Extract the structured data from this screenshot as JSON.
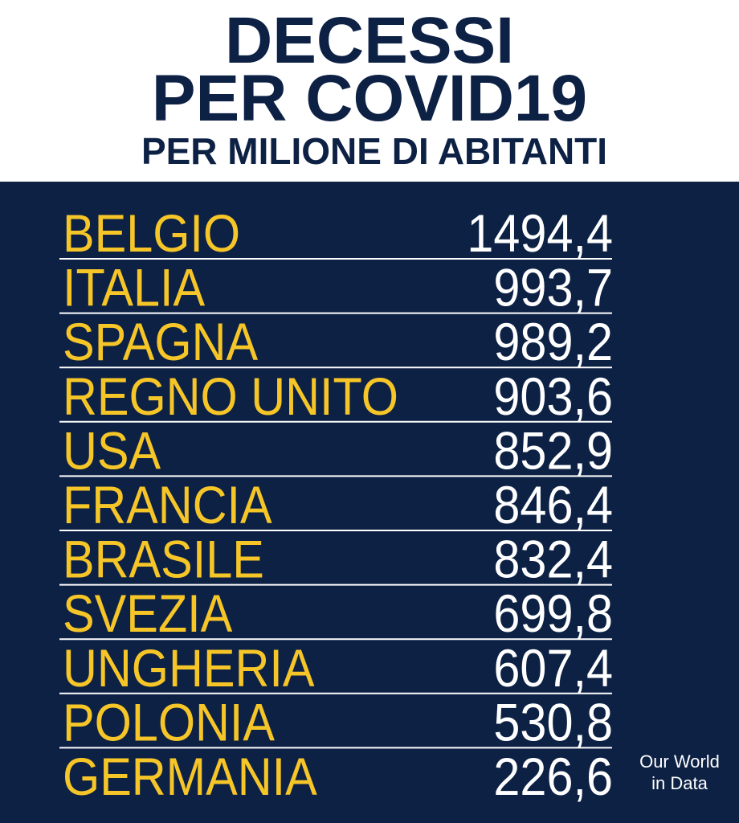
{
  "header": {
    "title_lines": [
      "DECESSI",
      "PER COVID19"
    ],
    "subtitle": "PER MILIONE DI ABITANTI"
  },
  "table": {
    "rows": [
      [
        "BELGIO",
        "1494,4"
      ],
      [
        "ITALIA",
        "993,7"
      ],
      [
        "SPAGNA",
        "989,2"
      ],
      [
        "REGNO UNITO",
        "903,6"
      ],
      [
        "USA",
        "852,9"
      ],
      [
        "FRANCIA",
        "846,4"
      ],
      [
        "BRASILE",
        "832,4"
      ],
      [
        "SVEZIA",
        "699,8"
      ],
      [
        "UNGHERIA",
        "607,4"
      ],
      [
        "POLONIA",
        "530,8"
      ],
      [
        "GERMANIA",
        "226,6"
      ]
    ]
  },
  "source": {
    "lines": [
      "Our World",
      "in Data"
    ]
  }
}
